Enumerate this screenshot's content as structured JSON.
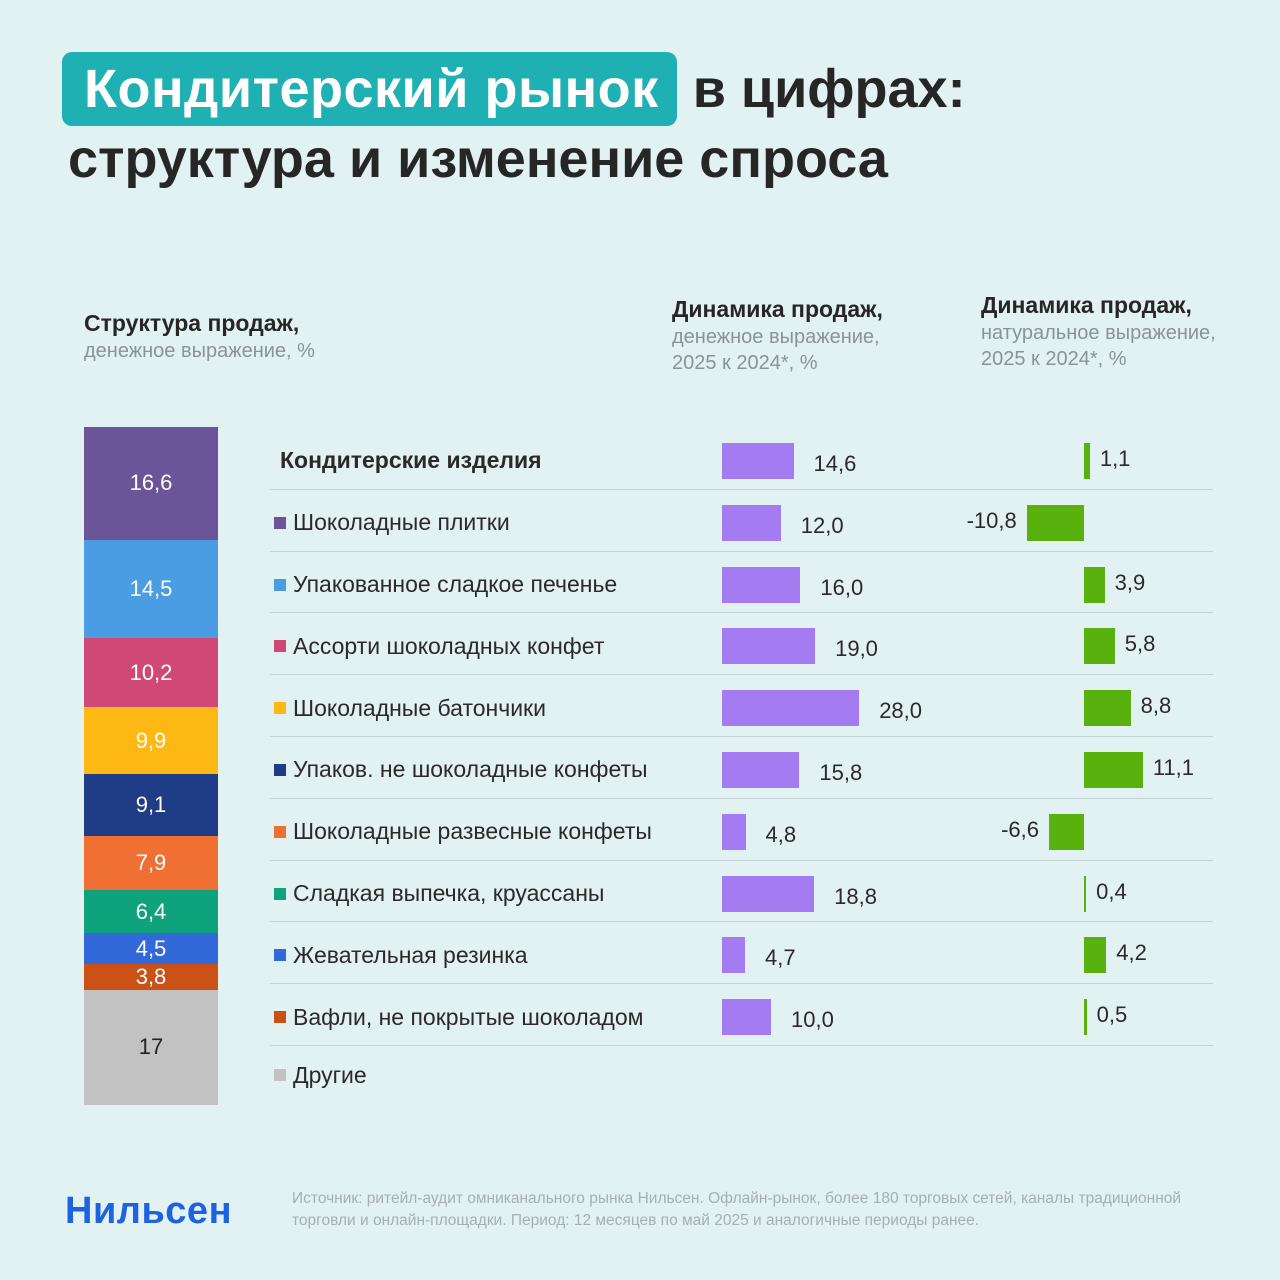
{
  "title": {
    "highlight": "Кондитерский рынок",
    "rest": "в цифрах:",
    "line2": "структура и изменение спроса"
  },
  "headers": {
    "structure": {
      "bold": "Структура продаж,",
      "sub": "денежное выражение, %"
    },
    "value_dynamics": {
      "bold": "Динамика продаж,",
      "sub1": "денежное выражение,",
      "sub2": "2025 к 2024*, %"
    },
    "volume_dynamics": {
      "bold": "Динамика продаж,",
      "sub1": "натуральное выражение,",
      "sub2": "2025 к 2024*, %"
    }
  },
  "colors": {
    "value_bar": "#a47cf2",
    "volume_bar": "#58b10d",
    "accent": "#1fb0b3",
    "logo": "#1d63e0"
  },
  "chart_data": [
    {
      "type": "bar",
      "name": "Структура продаж, денежное выражение, %",
      "stacked": true,
      "categories": [
        "Шоколадные плитки",
        "Упакованное сладкое печенье",
        "Ассорти шоколадных конфет",
        "Шоколадные батончики",
        "Упаков. не шоколадные конфеты",
        "Шоколадные развесные конфеты",
        "Сладкая выпечка, круассаны",
        "Жевательная резинка",
        "Вафли, не покрытые шоколадом",
        "Другие"
      ],
      "values": [
        16.6,
        14.5,
        10.2,
        9.9,
        9.1,
        7.9,
        6.4,
        4.5,
        3.8,
        17
      ],
      "labels": [
        "16,6",
        "14,5",
        "10,2",
        "9,9",
        "9,1",
        "7,9",
        "6,4",
        "4,5",
        "3,8",
        "17"
      ],
      "colors": [
        "#6b5497",
        "#4a9de3",
        "#d04876",
        "#fdb813",
        "#1f3c87",
        "#ef7032",
        "#0ea37c",
        "#3268d7",
        "#cc5116",
        "#c2c2c2"
      ]
    },
    {
      "type": "bar",
      "orientation": "horizontal",
      "name": "Динамика продаж, денежное выражение, 2025 к 2024*, %",
      "categories": [
        "Кондитерские изделия",
        "Шоколадные плитки",
        "Упакованное сладкое печенье",
        "Ассорти шоколадных конфет",
        "Шоколадные батончики",
        "Упаков. не шоколадные конфеты",
        "Шоколадные развесные конфеты",
        "Сладкая выпечка, круассаны",
        "Жевательная резинка",
        "Вафли, не покрытые шоколадом"
      ],
      "values": [
        14.6,
        12.0,
        16.0,
        19.0,
        28.0,
        15.8,
        4.8,
        18.8,
        4.7,
        10.0
      ],
      "labels": [
        "14,6",
        "12,0",
        "16,0",
        "19,0",
        "28,0",
        "15,8",
        "4,8",
        "18,8",
        "4,7",
        "10,0"
      ]
    },
    {
      "type": "bar",
      "orientation": "horizontal",
      "name": "Динамика продаж, натуральное выражение, 2025 к 2024*, %",
      "categories": [
        "Кондитерские изделия",
        "Шоколадные плитки",
        "Упакованное сладкое печенье",
        "Ассорти шоколадных конфет",
        "Шоколадные батончики",
        "Упаков. не шоколадные конфеты",
        "Шоколадные развесные конфеты",
        "Сладкая выпечка, круассаны",
        "Жевательная резинка",
        "Вафли, не покрытые шоколадом"
      ],
      "values": [
        1.1,
        -10.8,
        3.9,
        5.8,
        8.8,
        11.1,
        -6.6,
        0.4,
        4.2,
        0.5
      ],
      "labels": [
        "1,1",
        "-10,8",
        "3,9",
        "5,8",
        "8,8",
        "11,1",
        "-6,6",
        "0,4",
        "4,2",
        "0,5"
      ]
    }
  ],
  "footer": {
    "logo": "Нильсен",
    "source": "Источник: ритейл-аудит омниканального рынка Нильсен. Офлайн-рынок, более 180 торговых сетей, каналы традиционной торговли и онлайн-площадки. Период: 12 месяцев по май 2025 и аналогичные периоды ранее."
  }
}
